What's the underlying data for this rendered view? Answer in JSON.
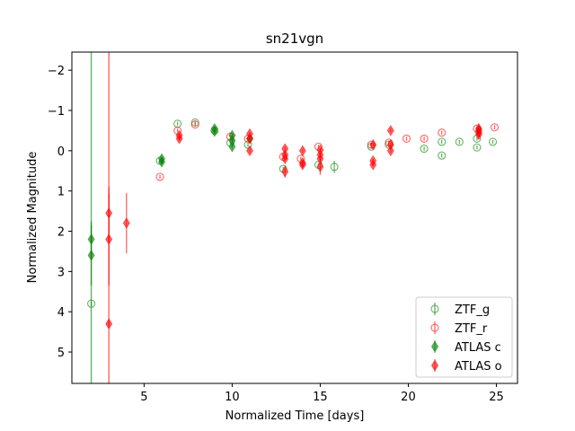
{
  "chart_data": {
    "type": "scatter",
    "title": "sn21vgn",
    "xlabel": "Normalized Time [days]",
    "ylabel": "Normalized Magnitude",
    "xlim": [
      0.9,
      26.2
    ],
    "ylim": [
      5.78,
      -2.45
    ],
    "y_inverted": true,
    "xticks": [
      5,
      10,
      15,
      20,
      25
    ],
    "yticks": [
      -2,
      -1,
      0,
      1,
      2,
      3,
      4,
      5
    ],
    "grid": false,
    "legend_position": "lower-right",
    "series": [
      {
        "name": "ZTF_g",
        "color": "#008000",
        "marker": "open-circle",
        "points": [
          {
            "x": 2.0,
            "y": 3.8
          },
          {
            "x": 5.9,
            "y": 0.25
          },
          {
            "x": 6.9,
            "y": -0.67
          },
          {
            "x": 7.9,
            "y": -0.7
          },
          {
            "x": 9.0,
            "y": -0.5
          },
          {
            "x": 9.9,
            "y": -0.2
          },
          {
            "x": 10.9,
            "y": -0.15
          },
          {
            "x": 12.9,
            "y": 0.45
          },
          {
            "x": 14.9,
            "y": 0.35
          },
          {
            "x": 15.8,
            "y": 0.4,
            "yerr": 0.15
          },
          {
            "x": 17.9,
            "y": -0.1
          },
          {
            "x": 18.9,
            "y": -0.15
          },
          {
            "x": 20.9,
            "y": -0.05
          },
          {
            "x": 21.9,
            "y": -0.22
          },
          {
            "x": 21.9,
            "y": 0.12
          },
          {
            "x": 22.9,
            "y": -0.22
          },
          {
            "x": 23.9,
            "y": -0.3
          },
          {
            "x": 23.9,
            "y": -0.08
          },
          {
            "x": 24.8,
            "y": -0.22
          }
        ]
      },
      {
        "name": "ZTF_r",
        "color": "#ff0000",
        "marker": "open-circle",
        "points": [
          {
            "x": 5.9,
            "y": 0.65
          },
          {
            "x": 6.9,
            "y": -0.5
          },
          {
            "x": 7.9,
            "y": -0.65
          },
          {
            "x": 9.9,
            "y": -0.35
          },
          {
            "x": 10.9,
            "y": -0.3
          },
          {
            "x": 12.9,
            "y": 0.15
          },
          {
            "x": 13.9,
            "y": 0.2
          },
          {
            "x": 14.9,
            "y": -0.1
          },
          {
            "x": 17.9,
            "y": -0.15
          },
          {
            "x": 18.9,
            "y": -0.2
          },
          {
            "x": 19.9,
            "y": -0.3
          },
          {
            "x": 20.9,
            "y": -0.3
          },
          {
            "x": 21.9,
            "y": -0.45
          },
          {
            "x": 23.9,
            "y": -0.55
          },
          {
            "x": 24.9,
            "y": -0.58
          }
        ]
      },
      {
        "name": "ATLAS c",
        "color": "#008000",
        "marker": "filled-diamond",
        "points": [
          {
            "x": 2.0,
            "y": 2.2,
            "yerr": 0.45
          },
          {
            "x": 2.0,
            "y": 2.6,
            "yerr": 0.75
          },
          {
            "x": 6.0,
            "y": 0.2
          },
          {
            "x": 6.0,
            "y": 0.28
          },
          {
            "x": 9.0,
            "y": -0.48
          },
          {
            "x": 9.0,
            "y": -0.55
          },
          {
            "x": 10.0,
            "y": -0.1
          },
          {
            "x": 10.0,
            "y": -0.25
          },
          {
            "x": 10.0,
            "y": -0.38
          },
          {
            "x": 11.0,
            "y": -0.3
          }
        ]
      },
      {
        "name": "ATLAS o",
        "color": "#ff0000",
        "marker": "filled-diamond",
        "points": [
          {
            "x": 3.0,
            "y": 1.55,
            "yerr": 0.65
          },
          {
            "x": 3.0,
            "y": 2.2,
            "yerr": 1.15
          },
          {
            "x": 3.0,
            "y": 4.3
          },
          {
            "x": 4.0,
            "y": 1.8,
            "yerr": 0.75
          },
          {
            "x": 7.0,
            "y": -0.3
          },
          {
            "x": 7.0,
            "y": -0.38
          },
          {
            "x": 11.0,
            "y": 0.0
          },
          {
            "x": 11.0,
            "y": -0.3
          },
          {
            "x": 11.0,
            "y": -0.42
          },
          {
            "x": 13.0,
            "y": 0.1
          },
          {
            "x": 13.0,
            "y": 0.2
          },
          {
            "x": 13.0,
            "y": -0.05
          },
          {
            "x": 13.0,
            "y": 0.52,
            "yerr": 0.15
          },
          {
            "x": 14.0,
            "y": 0.0
          },
          {
            "x": 14.0,
            "y": 0.3
          },
          {
            "x": 14.0,
            "y": 0.35
          },
          {
            "x": 15.0,
            "y": 0.1
          },
          {
            "x": 15.0,
            "y": 0.2
          },
          {
            "x": 15.0,
            "y": 0.4,
            "yerr": 0.2
          },
          {
            "x": 15.0,
            "y": -0.02
          },
          {
            "x": 18.0,
            "y": -0.15
          },
          {
            "x": 18.0,
            "y": 0.25
          },
          {
            "x": 18.0,
            "y": 0.35
          },
          {
            "x": 19.0,
            "y": -0.15
          },
          {
            "x": 19.0,
            "y": -0.5
          },
          {
            "x": 19.0,
            "y": 0.0
          },
          {
            "x": 24.0,
            "y": -0.5
          },
          {
            "x": 24.0,
            "y": -0.55
          },
          {
            "x": 24.0,
            "y": -0.45
          },
          {
            "x": 24.0,
            "y": -0.4
          }
        ]
      }
    ],
    "vertical_lines": [
      {
        "x": 2.0,
        "color": "#008000"
      },
      {
        "x": 3.0,
        "color": "#ff0000"
      }
    ]
  }
}
